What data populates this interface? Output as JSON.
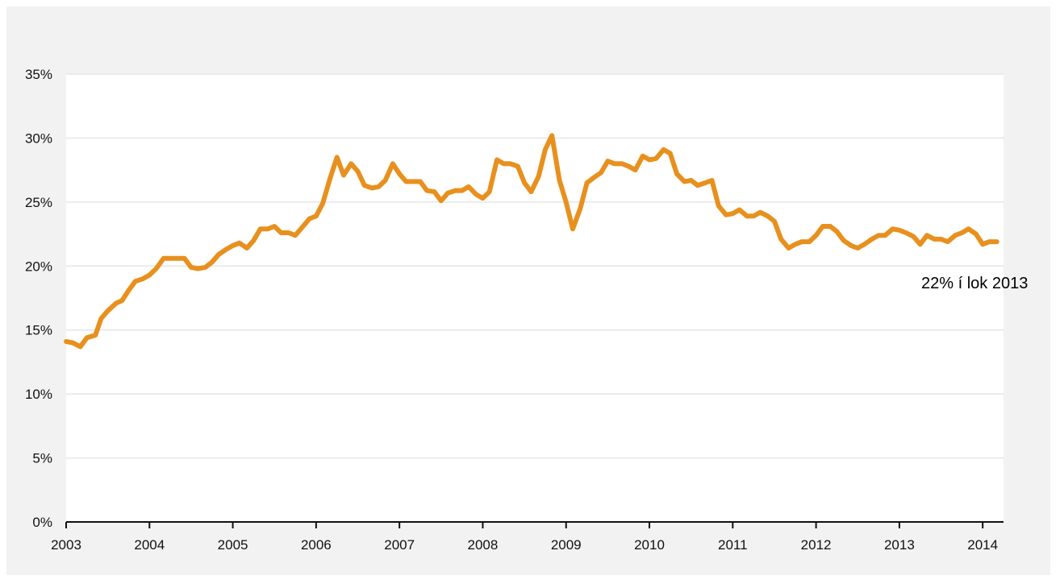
{
  "chart_data": {
    "type": "line",
    "title": "",
    "xlabel": "",
    "ylabel": "",
    "ylim": [
      0,
      35
    ],
    "xlim": [
      2003,
      2014.25
    ],
    "y_ticks": [
      0,
      5,
      10,
      15,
      20,
      25,
      30,
      35
    ],
    "y_tick_labels": [
      "0%",
      "5%",
      "10%",
      "15%",
      "20%",
      "25%",
      "30%",
      "35%"
    ],
    "x_ticks": [
      2003,
      2004,
      2005,
      2006,
      2007,
      2008,
      2009,
      2010,
      2011,
      2012,
      2013,
      2014
    ],
    "x_tick_labels": [
      "2003",
      "2004",
      "2005",
      "2006",
      "2007",
      "2008",
      "2009",
      "2010",
      "2011",
      "2012",
      "2013",
      "2014"
    ],
    "grid": "horizontal",
    "line_color": "#e8901e",
    "series": [
      {
        "x": [
          2003.0,
          2003.08,
          2003.17,
          2003.25,
          2003.35,
          2003.42,
          2003.5,
          2003.6,
          2003.67,
          2003.75,
          2003.83,
          2003.92,
          2004.0,
          2004.08,
          2004.17,
          2004.25,
          2004.33,
          2004.42,
          2004.5,
          2004.58,
          2004.67,
          2004.75,
          2004.83,
          2004.92,
          2005.0,
          2005.08,
          2005.17,
          2005.25,
          2005.33,
          2005.42,
          2005.5,
          2005.58,
          2005.67,
          2005.75,
          2005.83,
          2005.92,
          2006.0,
          2006.08,
          2006.17,
          2006.25,
          2006.33,
          2006.42,
          2006.5,
          2006.58,
          2006.67,
          2006.75,
          2006.83,
          2006.92,
          2007.0,
          2007.08,
          2007.17,
          2007.25,
          2007.33,
          2007.42,
          2007.5,
          2007.58,
          2007.67,
          2007.75,
          2007.83,
          2007.92,
          2008.0,
          2008.08,
          2008.17,
          2008.25,
          2008.33,
          2008.42,
          2008.5,
          2008.58,
          2008.67,
          2008.75,
          2008.83,
          2008.92,
          2009.0,
          2009.08,
          2009.17,
          2009.25,
          2009.33,
          2009.42,
          2009.5,
          2009.58,
          2009.67,
          2009.75,
          2009.83,
          2009.92,
          2010.0,
          2010.08,
          2010.17,
          2010.25,
          2010.33,
          2010.42,
          2010.5,
          2010.58,
          2010.67,
          2010.75,
          2010.83,
          2010.92,
          2011.0,
          2011.08,
          2011.17,
          2011.25,
          2011.33,
          2011.42,
          2011.5,
          2011.58,
          2011.67,
          2011.75,
          2011.83,
          2011.92,
          2012.0,
          2012.08,
          2012.17,
          2012.25,
          2012.33,
          2012.42,
          2012.5,
          2012.58,
          2012.67,
          2012.75,
          2012.83,
          2012.92,
          2013.0,
          2013.08,
          2013.17,
          2013.25,
          2013.33,
          2013.42,
          2013.5,
          2013.58,
          2013.67,
          2013.75,
          2013.83,
          2013.92,
          2014.0,
          2014.08,
          2014.17
        ],
        "values": [
          14.1,
          14.0,
          13.7,
          14.4,
          14.6,
          15.9,
          16.5,
          17.1,
          17.3,
          18.1,
          18.8,
          19.0,
          19.3,
          19.8,
          20.6,
          20.6,
          20.6,
          20.6,
          19.9,
          19.8,
          19.9,
          20.3,
          20.9,
          21.3,
          21.6,
          21.8,
          21.4,
          22.0,
          22.9,
          22.9,
          23.1,
          22.6,
          22.6,
          22.4,
          23.0,
          23.7,
          23.9,
          24.9,
          26.9,
          28.5,
          27.1,
          28.0,
          27.4,
          26.3,
          26.1,
          26.2,
          26.7,
          28.0,
          27.2,
          26.6,
          26.6,
          26.6,
          25.9,
          25.8,
          25.1,
          25.7,
          25.9,
          25.9,
          26.2,
          25.6,
          25.3,
          25.8,
          28.3,
          28.0,
          28.0,
          27.8,
          26.5,
          25.8,
          27.0,
          29.1,
          30.2,
          26.7,
          25.0,
          22.9,
          24.5,
          26.5,
          26.9,
          27.3,
          28.2,
          28.0,
          28.0,
          27.8,
          27.5,
          28.6,
          28.3,
          28.4,
          29.1,
          28.8,
          27.2,
          26.6,
          26.7,
          26.3,
          26.5,
          26.7,
          24.7,
          24.0,
          24.1,
          24.4,
          23.9,
          23.9,
          24.2,
          23.9,
          23.5,
          22.1,
          21.4,
          21.7,
          21.9,
          21.9,
          22.4,
          23.1,
          23.1,
          22.7,
          22.0,
          21.6,
          21.4,
          21.7,
          22.1,
          22.4,
          22.4,
          22.9,
          22.8,
          22.6,
          22.3,
          21.7,
          22.4,
          22.1,
          22.1,
          21.9,
          22.4,
          22.6,
          22.9,
          22.5,
          21.7,
          21.9,
          21.9
        ]
      }
    ],
    "annotations": [
      {
        "text": "22% í lok 2013"
      }
    ]
  }
}
